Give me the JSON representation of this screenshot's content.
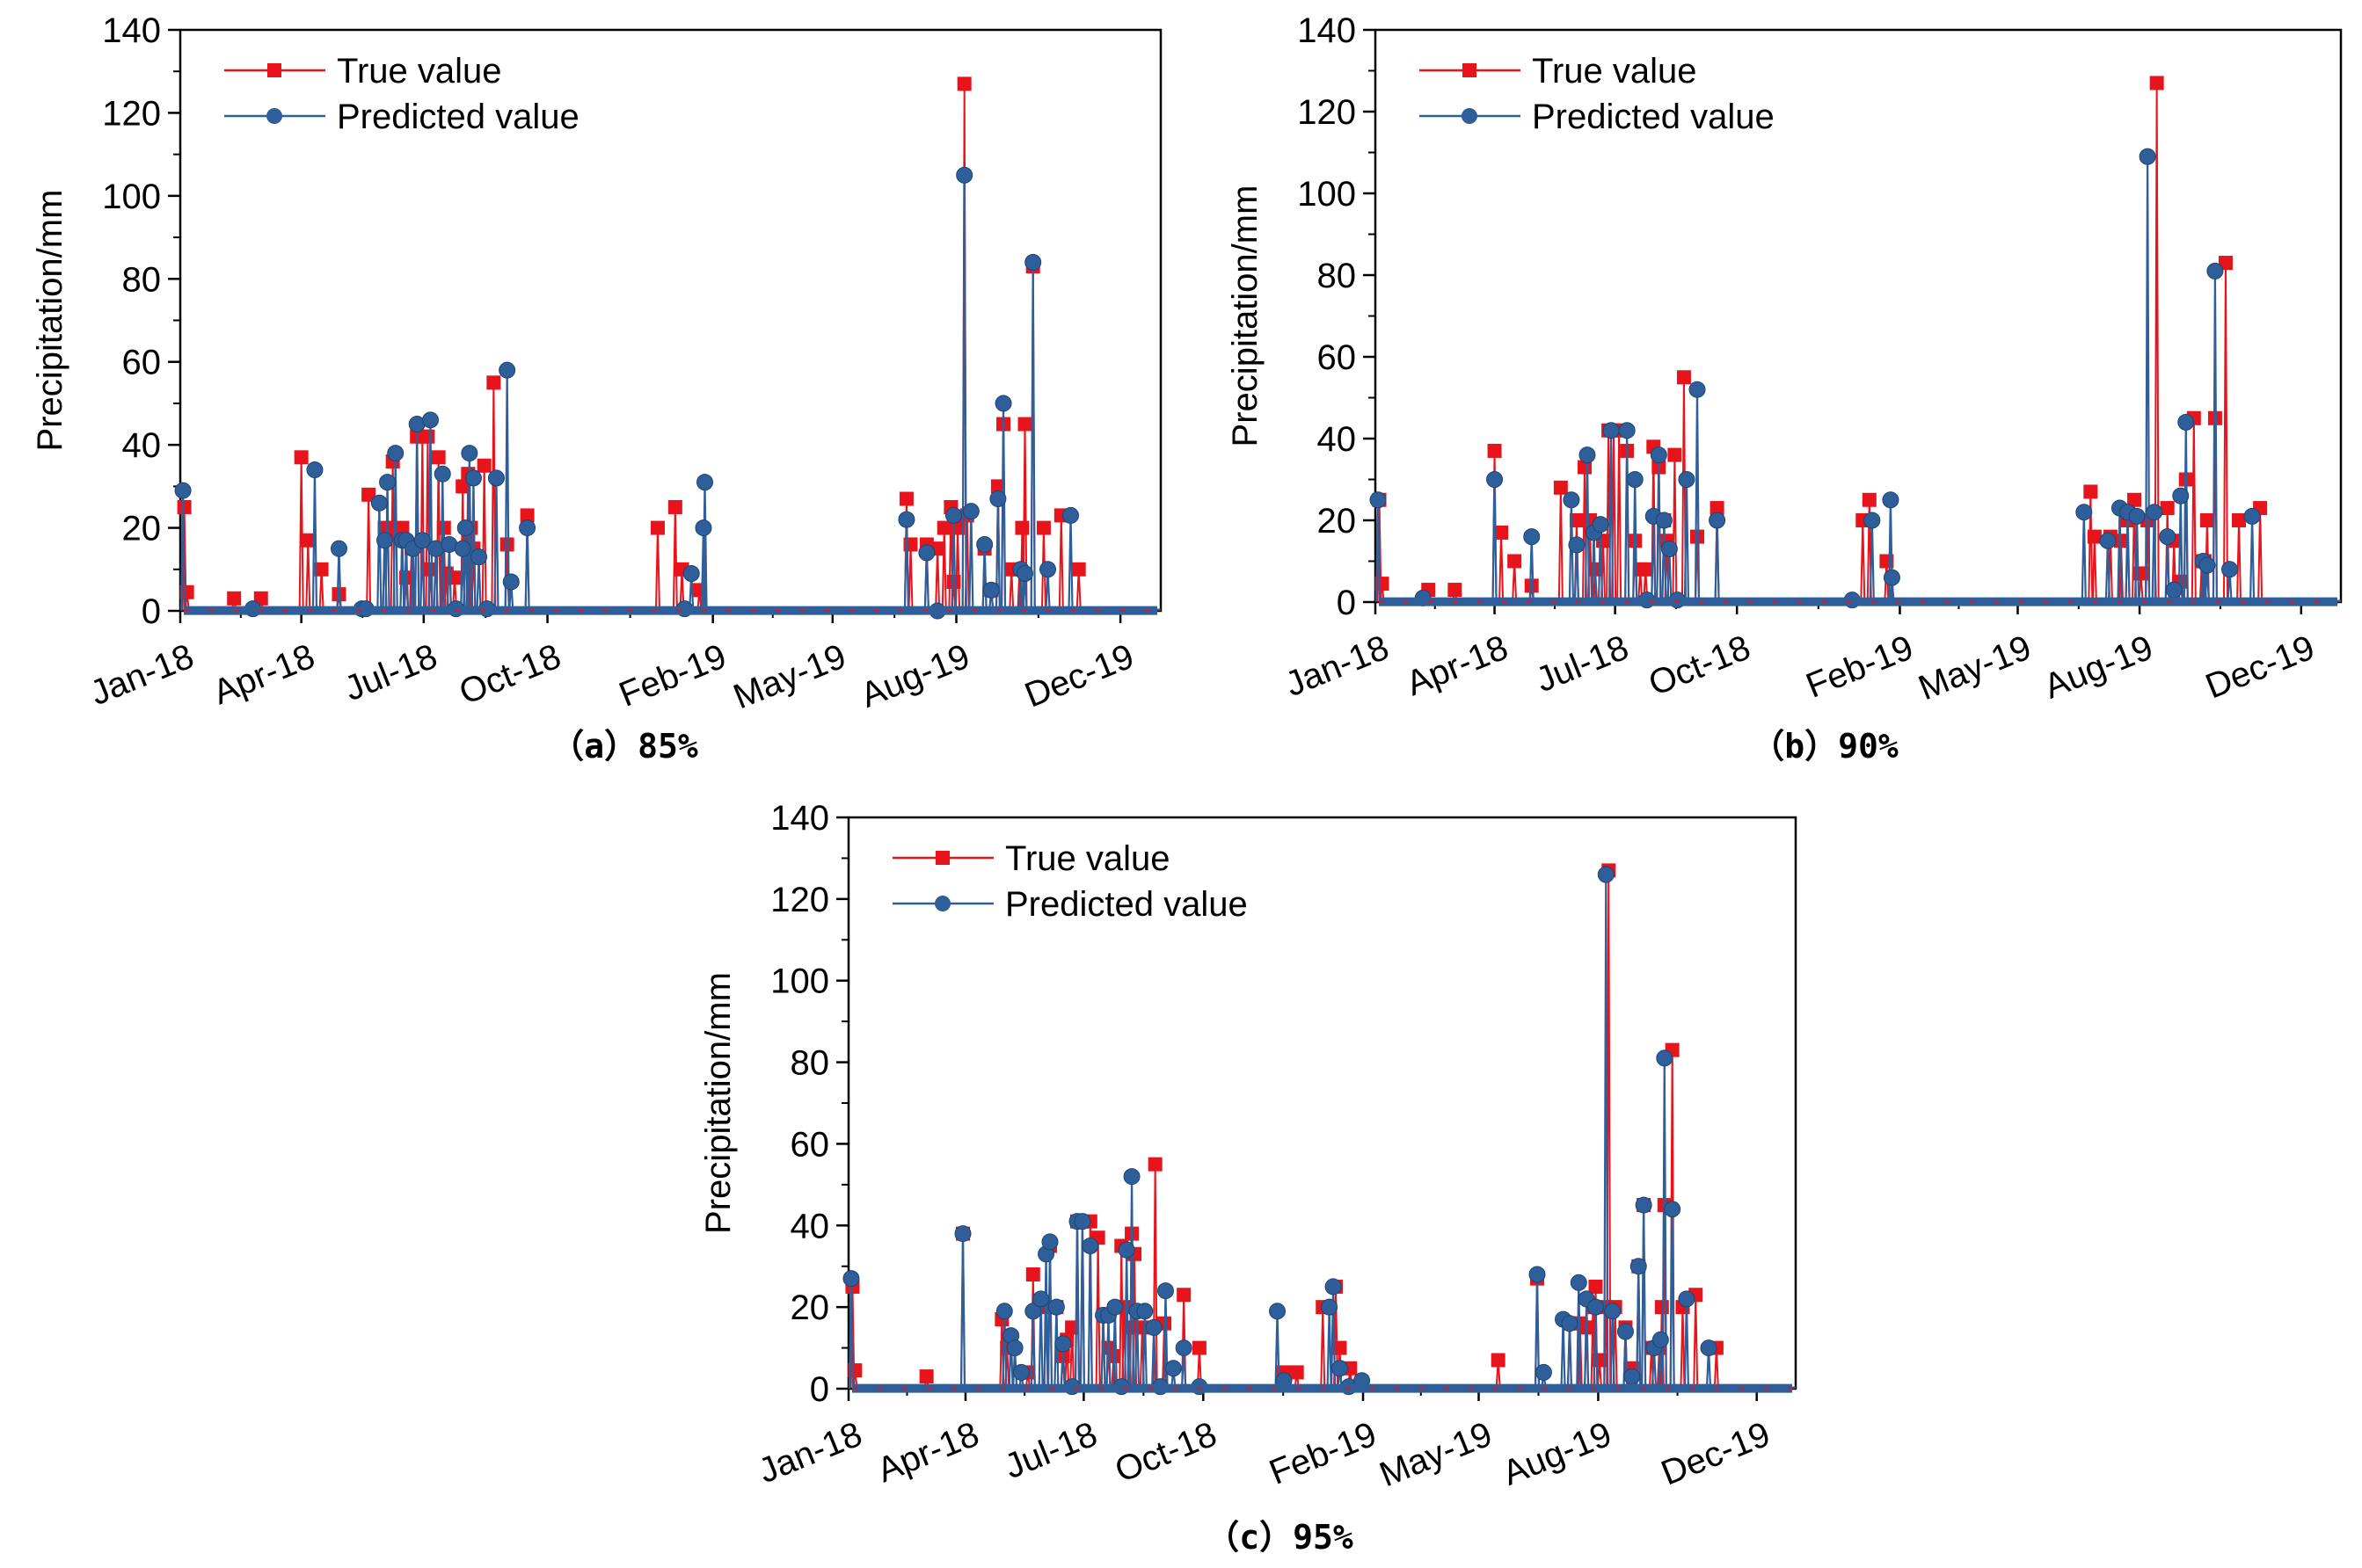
{
  "chart_data": [
    {
      "panel": "a",
      "caption": "（a）85%",
      "type": "line",
      "ylabel": "Precipitation/mm",
      "ylim": [
        0,
        140
      ],
      "yticks": [
        0,
        20,
        40,
        60,
        80,
        100,
        120,
        140
      ],
      "xticks": [
        "Jan-18",
        "Apr-18",
        "Jul-18",
        "Oct-18",
        "Feb-19",
        "May-19",
        "Aug-19",
        "Dec-19"
      ],
      "xtick_days": [
        0,
        90,
        181,
        273,
        396,
        485,
        577,
        699
      ],
      "xlim_days": [
        0,
        729
      ],
      "legend_position": "top-left",
      "series": [
        {
          "name": "True value",
          "color": "#e8141c",
          "marker": "square",
          "x": [
            3,
            5,
            40,
            60,
            90,
            95,
            105,
            118,
            140,
            152,
            158,
            165,
            168,
            172,
            176,
            180,
            184,
            186,
            192,
            196,
            198,
            204,
            210,
            214,
            216,
            218,
            226,
            233,
            243,
            258,
            355,
            368,
            373,
            386,
            540,
            543,
            555,
            563,
            568,
            573,
            575,
            578,
            583,
            585,
            598,
            603,
            608,
            612,
            618,
            624,
            626,
            628,
            634,
            642,
            655,
            668
          ],
          "y": [
            25,
            4.5,
            3,
            3,
            37,
            17,
            10,
            4,
            28,
            20,
            36,
            20,
            8,
            15,
            42,
            42,
            42,
            10,
            37,
            20,
            9,
            8,
            30,
            33,
            20,
            15,
            35,
            55,
            16,
            23,
            20,
            25,
            10,
            5,
            27,
            16,
            16,
            15,
            20,
            25,
            7,
            20,
            127,
            23,
            15,
            5,
            30,
            45,
            10,
            10,
            20,
            45,
            83,
            20,
            23,
            10
          ]
        },
        {
          "name": "Predicted value",
          "color": "#2f5f9a",
          "marker": "circle",
          "x": [
            2,
            54,
            100,
            118,
            135,
            138,
            148,
            152,
            154,
            160,
            165,
            168,
            173,
            176,
            180,
            186,
            190,
            195,
            200,
            205,
            210,
            212,
            215,
            218,
            222,
            228,
            235,
            243,
            246,
            258,
            375,
            380,
            389,
            390,
            540,
            555,
            563,
            575,
            583,
            588,
            598,
            603,
            608,
            612,
            625,
            628,
            634,
            645,
            662
          ],
          "y": [
            29,
            0.5,
            34,
            15,
            0.5,
            0.5,
            26,
            17,
            31,
            38,
            17,
            17,
            15,
            45,
            17,
            46,
            15,
            33,
            16,
            0.5,
            15,
            20,
            38,
            32,
            13,
            0.5,
            32,
            58,
            7,
            20,
            0.5,
            9,
            20,
            31,
            22,
            14,
            0,
            23,
            105,
            24,
            16,
            5,
            27,
            50,
            10,
            9,
            84,
            10,
            23
          ]
        }
      ]
    },
    {
      "panel": "b",
      "caption": "（b）90%",
      "type": "line",
      "ylabel": "Precipitation/mm",
      "ylim": [
        0,
        140
      ],
      "yticks": [
        0,
        20,
        40,
        60,
        80,
        100,
        120,
        140
      ],
      "xticks": [
        "Jan-18",
        "Apr-18",
        "Jul-18",
        "Oct-18",
        "Feb-19",
        "May-19",
        "Aug-19",
        "Dec-19"
      ],
      "xtick_days": [
        0,
        90,
        181,
        273,
        396,
        485,
        577,
        699
      ],
      "xlim_days": [
        0,
        729
      ],
      "legend_position": "top-left",
      "series": [
        {
          "name": "True value",
          "color": "#e8141c",
          "marker": "square",
          "x": [
            3,
            5,
            40,
            60,
            90,
            95,
            105,
            118,
            140,
            152,
            158,
            162,
            166,
            172,
            176,
            180,
            184,
            190,
            196,
            200,
            204,
            210,
            214,
            218,
            220,
            226,
            233,
            243,
            258,
            368,
            373,
            386,
            540,
            543,
            555,
            563,
            568,
            573,
            578,
            583,
            590,
            598,
            603,
            608,
            612,
            618,
            624,
            626,
            628,
            634,
            642,
            652,
            668
          ],
          "y": [
            25,
            4.5,
            3,
            3,
            37,
            17,
            10,
            4,
            28,
            20,
            33,
            20,
            8,
            15,
            42,
            42,
            42,
            37,
            15,
            8,
            8,
            38,
            33,
            20,
            15,
            36,
            55,
            16,
            23,
            20,
            25,
            10,
            27,
            16,
            16,
            15,
            20,
            25,
            7,
            20,
            127,
            23,
            15,
            5,
            30,
            45,
            10,
            10,
            20,
            45,
            83,
            20,
            23
          ]
        },
        {
          "name": "Predicted value",
          "color": "#2f5f9a",
          "marker": "circle",
          "x": [
            2,
            36,
            90,
            118,
            148,
            152,
            160,
            165,
            170,
            178,
            190,
            196,
            205,
            210,
            214,
            218,
            222,
            228,
            235,
            243,
            258,
            360,
            375,
            389,
            390,
            535,
            553,
            562,
            568,
            575,
            583,
            588,
            598,
            603,
            608,
            612,
            625,
            628,
            634,
            645,
            662
          ],
          "y": [
            25,
            1,
            30,
            16,
            25,
            14,
            36,
            17,
            19,
            42,
            42,
            30,
            0.5,
            21,
            36,
            20,
            13,
            0.5,
            30,
            52,
            20,
            0.5,
            20,
            25,
            6,
            22,
            15,
            23,
            22,
            21,
            109,
            22,
            16,
            3,
            26,
            44,
            10,
            9,
            81,
            8,
            21
          ]
        }
      ]
    },
    {
      "panel": "c",
      "caption": "（c）95%",
      "type": "line",
      "ylabel": "Precipitation/mm",
      "ylim": [
        0,
        140
      ],
      "yticks": [
        0,
        20,
        40,
        60,
        80,
        100,
        120,
        140
      ],
      "xticks": [
        "Jan-18",
        "Apr-18",
        "Jul-18",
        "Oct-18",
        "Feb-19",
        "May-19",
        "Aug-19",
        "Dec-19"
      ],
      "xtick_days": [
        0,
        90,
        181,
        273,
        396,
        485,
        577,
        699
      ],
      "xlim_days": [
        0,
        729
      ],
      "legend_position": "top-left",
      "series": [
        {
          "name": "True value",
          "color": "#e8141c",
          "marker": "square",
          "x": [
            3,
            5,
            60,
            88,
            118,
            122,
            138,
            142,
            152,
            155,
            160,
            165,
            168,
            172,
            176,
            180,
            186,
            192,
            196,
            200,
            204,
            210,
            212,
            216,
            218,
            220,
            226,
            236,
            243,
            258,
            270,
            335,
            345,
            365,
            375,
            378,
            386,
            500,
            530,
            555,
            563,
            568,
            573,
            575,
            578,
            583,
            585,
            590,
            598,
            603,
            608,
            612,
            618,
            624,
            626,
            628,
            634,
            642,
            652,
            668
          ],
          "y": [
            25,
            4.5,
            3,
            38,
            17,
            10,
            4,
            28,
            20,
            35,
            20,
            8,
            12,
            15,
            41,
            41,
            41,
            37,
            18,
            10,
            8,
            35,
            20,
            15,
            38,
            33,
            15,
            55,
            16,
            23,
            10,
            4,
            4,
            20,
            25,
            10,
            5,
            7,
            27,
            16,
            16,
            15,
            20,
            25,
            7,
            20,
            127,
            20,
            15,
            5,
            30,
            45,
            10,
            10,
            20,
            45,
            83,
            20,
            23,
            10
          ]
        },
        {
          "name": "Predicted value",
          "color": "#2f5f9a",
          "marker": "circle",
          "x": [
            2,
            88,
            120,
            125,
            128,
            133,
            142,
            148,
            152,
            155,
            160,
            165,
            172,
            176,
            180,
            186,
            196,
            200,
            205,
            210,
            214,
            218,
            222,
            228,
            235,
            240,
            244,
            250,
            258,
            270,
            330,
            335,
            370,
            373,
            378,
            385,
            395,
            530,
            535,
            550,
            555,
            562,
            568,
            575,
            583,
            588,
            598,
            603,
            608,
            612,
            620,
            625,
            628,
            634,
            645,
            662
          ],
          "y": [
            27,
            38,
            19,
            13,
            10,
            4,
            19,
            22,
            33,
            36,
            20,
            11,
            0.5,
            41,
            41,
            35,
            18,
            18,
            20,
            0.5,
            34,
            52,
            19,
            19,
            15,
            0.5,
            24,
            5,
            10,
            0.5,
            19,
            2,
            20,
            25,
            5,
            0.5,
            2,
            28,
            4,
            17,
            16,
            26,
            22,
            20,
            126,
            19,
            14,
            3,
            30,
            45,
            10,
            12,
            81,
            44,
            22,
            10
          ]
        }
      ]
    }
  ]
}
